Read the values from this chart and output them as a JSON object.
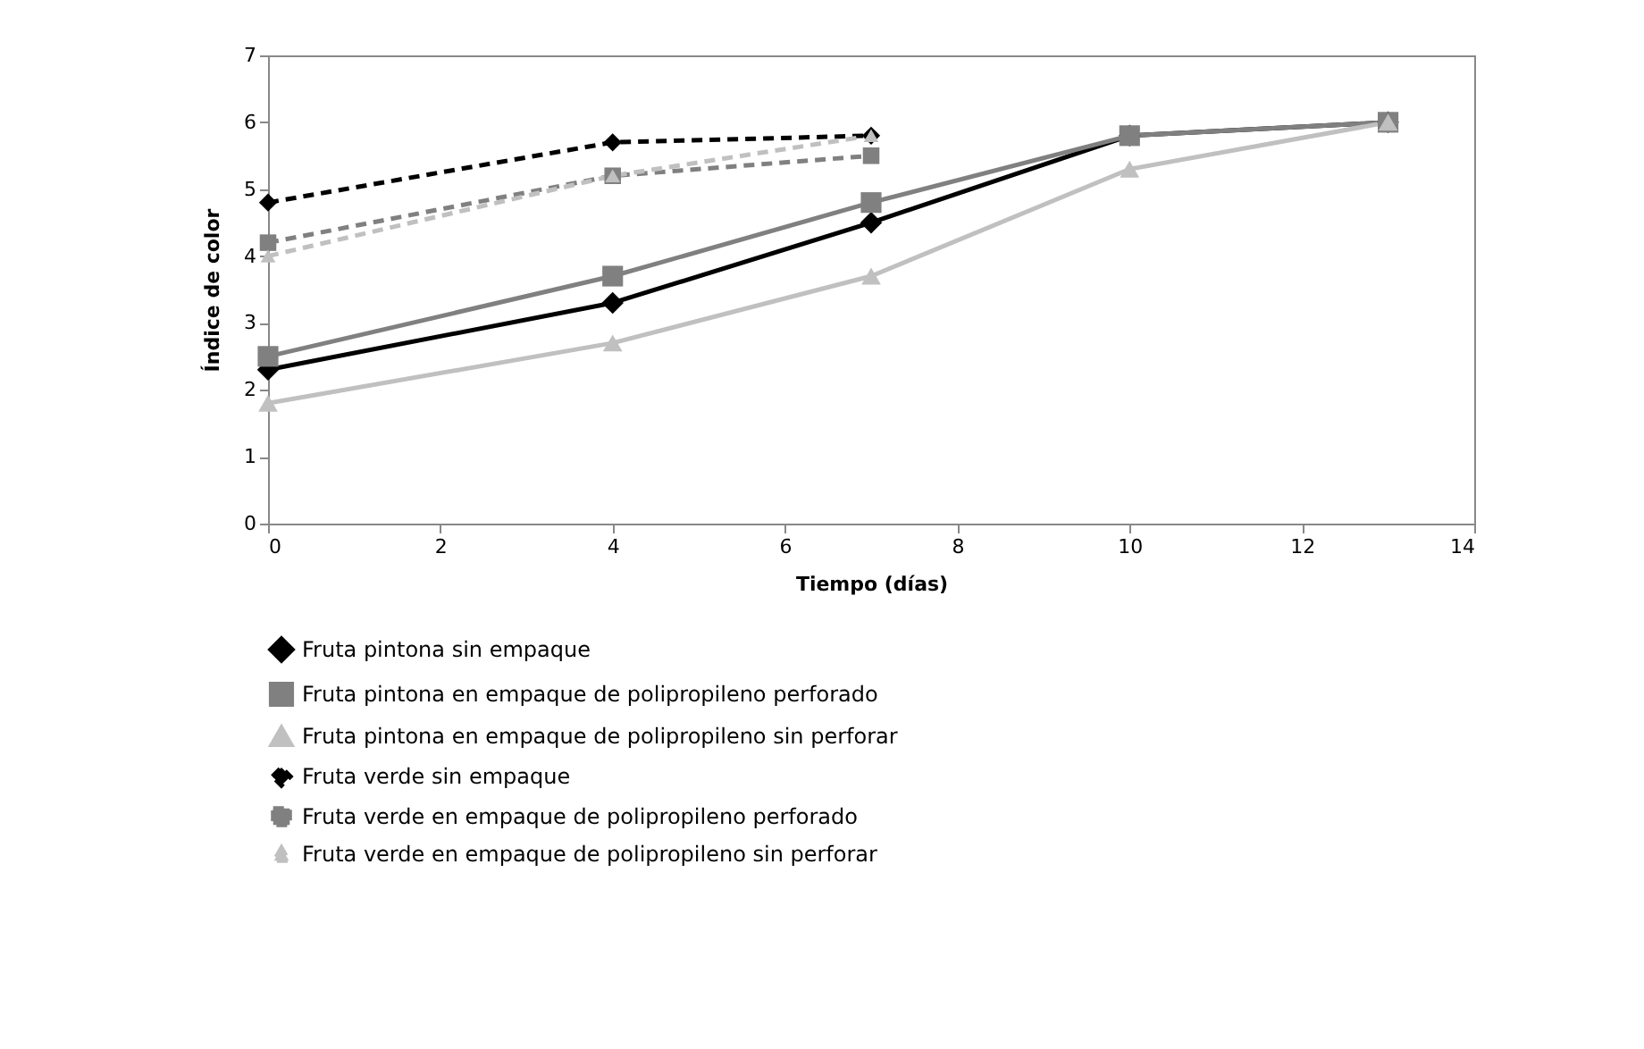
{
  "chart_data": {
    "type": "line",
    "xlabel": "Tiempo (días)",
    "ylabel": "Índice de color",
    "x": [
      0,
      4,
      7,
      10,
      13
    ],
    "series": [
      {
        "name": "Fruta pintona sin empaque",
        "color": "#000000",
        "marker": "diamond",
        "line_style": "solid",
        "values": [
          2.3,
          3.3,
          4.5,
          5.8,
          6.0
        ]
      },
      {
        "name": "Fruta pintona en empaque de polipropileno perforado",
        "color": "#808080",
        "marker": "square",
        "line_style": "solid",
        "values": [
          2.5,
          3.7,
          4.8,
          5.8,
          6.0
        ]
      },
      {
        "name": "Fruta pintona en empaque de polipropileno sin perforar",
        "color": "#c0c0c0",
        "marker": "triangle",
        "line_style": "solid",
        "values": [
          1.8,
          2.7,
          3.7,
          5.3,
          6.0
        ]
      },
      {
        "name": "Fruta verde sin empaque",
        "color": "#000000",
        "marker": "diamond",
        "line_style": "dashed",
        "values": [
          4.8,
          5.7,
          5.8,
          null,
          null
        ]
      },
      {
        "name": "Fruta verde en empaque de polipropileno perforado",
        "color": "#808080",
        "marker": "square",
        "line_style": "dashed",
        "values": [
          4.2,
          5.2,
          5.5,
          null,
          null
        ]
      },
      {
        "name": "Fruta verde en empaque de polipropileno sin perforar",
        "color": "#c0c0c0",
        "marker": "triangle",
        "line_style": "dashed",
        "values": [
          4.0,
          5.2,
          5.8,
          null,
          null
        ]
      }
    ],
    "xlim": [
      0,
      14
    ],
    "xticks": [
      0,
      2,
      4,
      6,
      8,
      10,
      12,
      14
    ],
    "ylim": [
      0,
      7
    ],
    "yticks": [
      0,
      1,
      2,
      3,
      4,
      5,
      6,
      7
    ],
    "grid": false,
    "legend": "bottom"
  }
}
